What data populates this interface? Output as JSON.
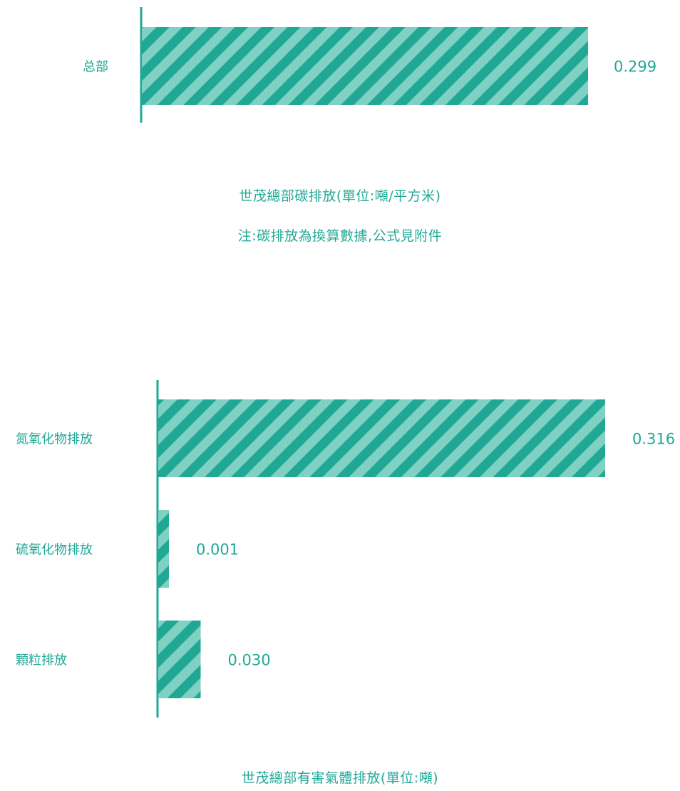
{
  "colors": {
    "teal": "#21a895",
    "teal_light": "#7fd1c4",
    "text": "#20a896"
  },
  "chart_data": [
    {
      "type": "bar",
      "orientation": "horizontal",
      "title": "世茂總部碳排放(單位:噸/平方米)",
      "note": "注:碳排放為換算數據,公式見附件",
      "categories": [
        "总部"
      ],
      "values": [
        0.299
      ],
      "value_labels": [
        "0.299"
      ],
      "xlim": [
        0,
        0.299
      ],
      "grid": false,
      "legend": "none",
      "bar_style": "diagonal-stripes"
    },
    {
      "type": "bar",
      "orientation": "horizontal",
      "title": "世茂總部有害氣體排放(單位:噸)",
      "categories": [
        "氮氧化物排放",
        "硫氧化物排放",
        "顆粒排放"
      ],
      "values": [
        0.316,
        0.001,
        0.03
      ],
      "value_labels": [
        "0.316",
        "0.001",
        "0.030"
      ],
      "xlim": [
        0,
        0.316
      ],
      "grid": false,
      "legend": "none",
      "bar_style": "diagonal-stripes"
    }
  ]
}
